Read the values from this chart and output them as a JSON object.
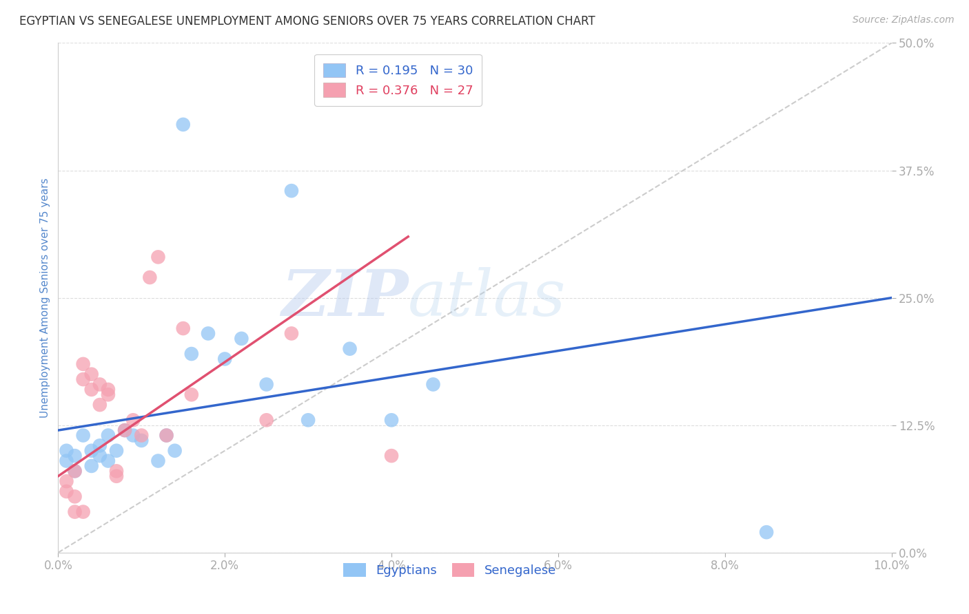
{
  "title": "EGYPTIAN VS SENEGALESE UNEMPLOYMENT AMONG SENIORS OVER 75 YEARS CORRELATION CHART",
  "source": "Source: ZipAtlas.com",
  "ylabel": "Unemployment Among Seniors over 75 years",
  "xlim": [
    0.0,
    0.1
  ],
  "ylim": [
    0.0,
    0.5
  ],
  "xticks": [
    0.0,
    0.02,
    0.04,
    0.06,
    0.08,
    0.1
  ],
  "yticks": [
    0.0,
    0.125,
    0.25,
    0.375,
    0.5
  ],
  "legend_labels": [
    "Egyptians",
    "Senegalese"
  ],
  "blue_color": "#92C5F5",
  "pink_color": "#F5A0B0",
  "trend_blue": "#3366CC",
  "trend_pink": "#E05070",
  "ref_line_color": "#CCCCCC",
  "watermark_zip": "ZIP",
  "watermark_atlas": "atlas",
  "R_blue": 0.195,
  "N_blue": 30,
  "R_pink": 0.376,
  "N_pink": 27,
  "blue_x": [
    0.001,
    0.001,
    0.002,
    0.002,
    0.003,
    0.004,
    0.004,
    0.005,
    0.005,
    0.006,
    0.006,
    0.007,
    0.008,
    0.009,
    0.01,
    0.012,
    0.013,
    0.014,
    0.015,
    0.016,
    0.018,
    0.02,
    0.022,
    0.025,
    0.028,
    0.03,
    0.035,
    0.04,
    0.045,
    0.085
  ],
  "blue_y": [
    0.09,
    0.1,
    0.08,
    0.095,
    0.115,
    0.085,
    0.1,
    0.105,
    0.095,
    0.115,
    0.09,
    0.1,
    0.12,
    0.115,
    0.11,
    0.09,
    0.115,
    0.1,
    0.42,
    0.195,
    0.215,
    0.19,
    0.21,
    0.165,
    0.355,
    0.13,
    0.2,
    0.13,
    0.165,
    0.02
  ],
  "pink_x": [
    0.001,
    0.001,
    0.002,
    0.002,
    0.003,
    0.003,
    0.004,
    0.004,
    0.005,
    0.005,
    0.006,
    0.006,
    0.007,
    0.007,
    0.008,
    0.009,
    0.01,
    0.011,
    0.012,
    0.013,
    0.015,
    0.016,
    0.025,
    0.028,
    0.04,
    0.002,
    0.003
  ],
  "pink_y": [
    0.06,
    0.07,
    0.08,
    0.055,
    0.17,
    0.185,
    0.175,
    0.16,
    0.165,
    0.145,
    0.155,
    0.16,
    0.08,
    0.075,
    0.12,
    0.13,
    0.115,
    0.27,
    0.29,
    0.115,
    0.22,
    0.155,
    0.13,
    0.215,
    0.095,
    0.04,
    0.04
  ],
  "blue_trend_x": [
    0.0,
    0.1
  ],
  "blue_trend_y": [
    0.12,
    0.25
  ],
  "pink_trend_x": [
    0.0,
    0.042
  ],
  "pink_trend_y": [
    0.075,
    0.31
  ]
}
